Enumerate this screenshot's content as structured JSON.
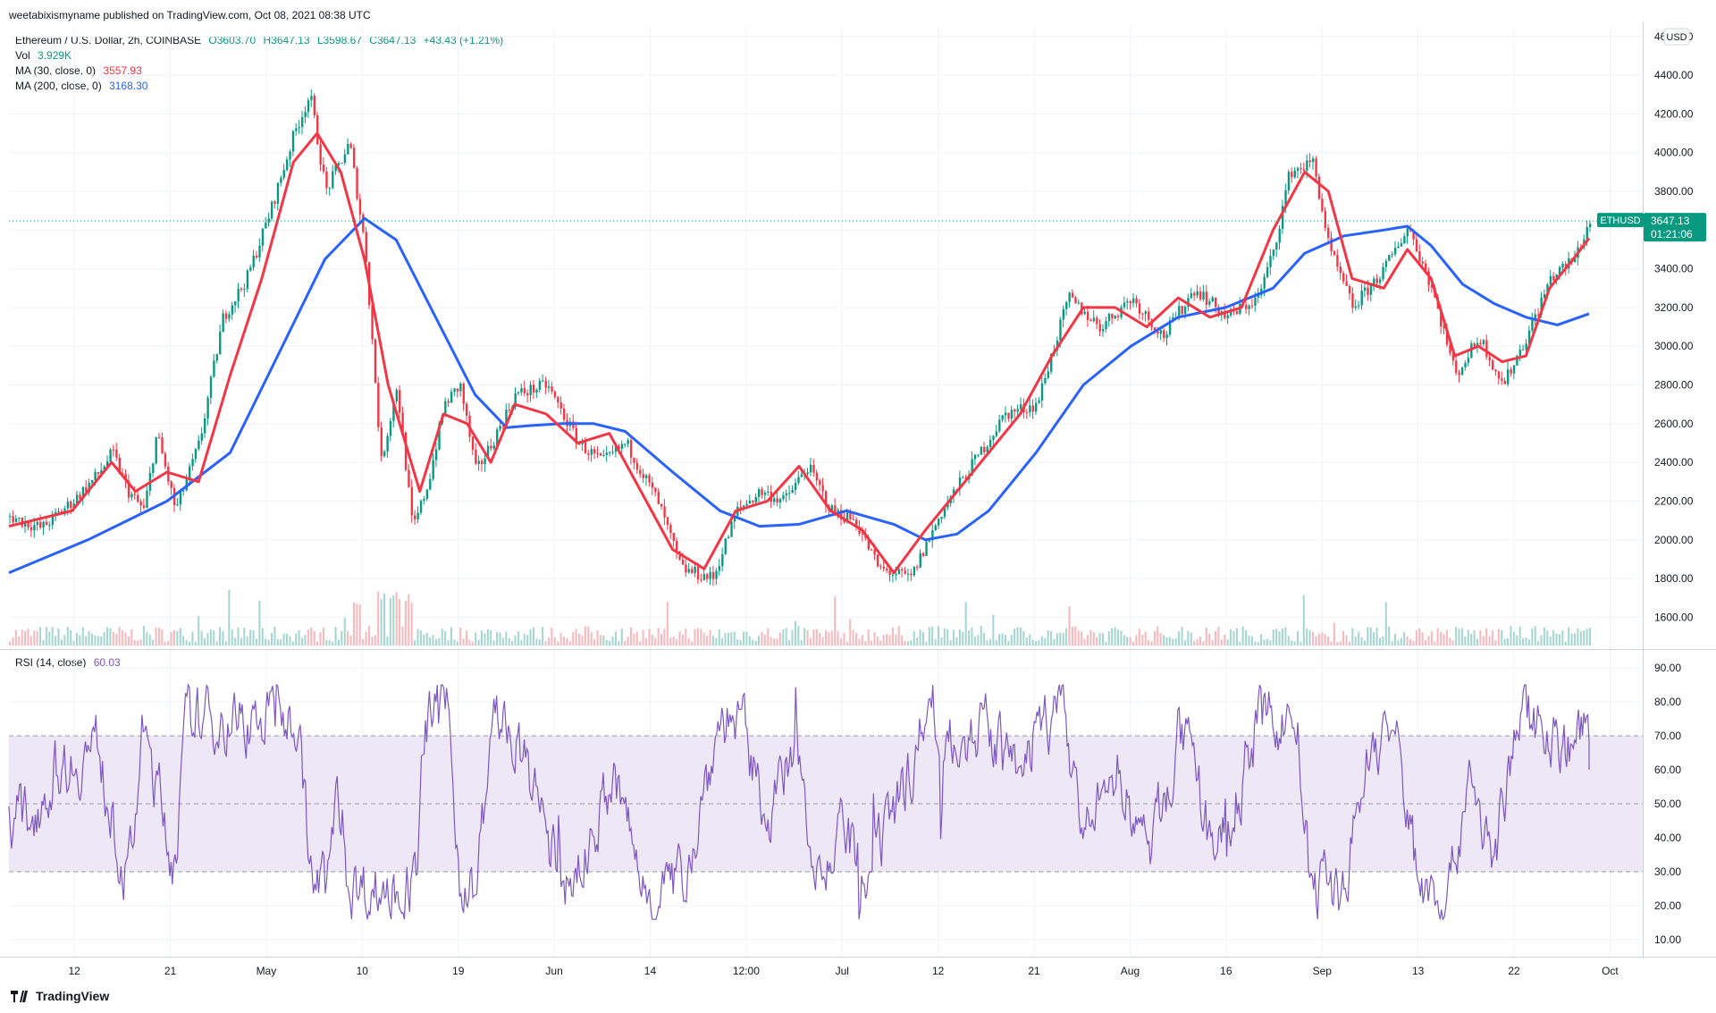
{
  "header": {
    "publisher_line": "weetabixismyname published on TradingView.com, Oct 08, 2021 08:38 UTC"
  },
  "legend": {
    "symbol": "Ethereum / U.S. Dollar, 2h, COINBASE",
    "open": "O3603.70",
    "high": "H3647.13",
    "low": "L3598.67",
    "close": "C3647.13",
    "change": "+43.43 (+1.21%)",
    "vol_label": "Vol",
    "vol_value": "3.929K",
    "ma30_label": "MA (30, close, 0)",
    "ma30_value": "3557.93",
    "ma200_label": "MA (200, close, 0)",
    "ma200_value": "3168.30",
    "rsi_label": "RSI (14, close)",
    "rsi_value": "60.03"
  },
  "price_scale": {
    "currency": "USD",
    "last_price_symbol": "ETHUSD",
    "last_price": "3647.13",
    "countdown": "01:21:06"
  },
  "footer": {
    "brand": "TradingView"
  },
  "colors": {
    "up": "#089981",
    "down": "#f23645",
    "ma30": "#f23645",
    "ma200": "#2962ff",
    "rsi": "#7e57c2",
    "rsi_band": "#ede7f6"
  },
  "chart_data": [
    {
      "type": "line",
      "title": "Ethereum / U.S. Dollar, 2h, COINBASE",
      "panel": "price",
      "ylim": [
        1440,
        4650
      ],
      "y_ticks": [
        "1600.00",
        "1800.00",
        "2000.00",
        "2200.00",
        "2400.00",
        "2600.00",
        "2800.00",
        "3000.00",
        "3200.00",
        "3400.00",
        "3600.00",
        "3800.00",
        "4000.00",
        "4200.00",
        "4400.00",
        "4600.00"
      ],
      "x_ticks": [
        "12",
        "21",
        "May",
        "10",
        "19",
        "Jun",
        "14",
        "12:00",
        "Jul",
        "12",
        "21",
        "Aug",
        "16",
        "Sep",
        "13",
        "22",
        "Oct"
      ],
      "price_path": [
        {
          "t": 0,
          "v": 2120
        },
        {
          "t": 0.02,
          "v": 2060
        },
        {
          "t": 0.04,
          "v": 2200
        },
        {
          "t": 0.055,
          "v": 2330
        },
        {
          "t": 0.065,
          "v": 2450
        },
        {
          "t": 0.075,
          "v": 2250
        },
        {
          "t": 0.085,
          "v": 2150
        },
        {
          "t": 0.093,
          "v": 2550
        },
        {
          "t": 0.105,
          "v": 2150
        },
        {
          "t": 0.12,
          "v": 2500
        },
        {
          "t": 0.135,
          "v": 3150
        },
        {
          "t": 0.15,
          "v": 3350
        },
        {
          "t": 0.165,
          "v": 3700
        },
        {
          "t": 0.18,
          "v": 4100
        },
        {
          "t": 0.19,
          "v": 4300
        },
        {
          "t": 0.2,
          "v": 3800
        },
        {
          "t": 0.215,
          "v": 4050
        },
        {
          "t": 0.225,
          "v": 3500
        },
        {
          "t": 0.235,
          "v": 2400
        },
        {
          "t": 0.245,
          "v": 2800
        },
        {
          "t": 0.255,
          "v": 2050
        },
        {
          "t": 0.265,
          "v": 2300
        },
        {
          "t": 0.275,
          "v": 2700
        },
        {
          "t": 0.285,
          "v": 2800
        },
        {
          "t": 0.295,
          "v": 2350
        },
        {
          "t": 0.305,
          "v": 2500
        },
        {
          "t": 0.32,
          "v": 2750
        },
        {
          "t": 0.34,
          "v": 2800
        },
        {
          "t": 0.36,
          "v": 2500
        },
        {
          "t": 0.375,
          "v": 2400
        },
        {
          "t": 0.39,
          "v": 2500
        },
        {
          "t": 0.41,
          "v": 2200
        },
        {
          "t": 0.425,
          "v": 1850
        },
        {
          "t": 0.445,
          "v": 1800
        },
        {
          "t": 0.46,
          "v": 2150
        },
        {
          "t": 0.475,
          "v": 2250
        },
        {
          "t": 0.49,
          "v": 2200
        },
        {
          "t": 0.505,
          "v": 2380
        },
        {
          "t": 0.52,
          "v": 2150
        },
        {
          "t": 0.535,
          "v": 2100
        },
        {
          "t": 0.55,
          "v": 1850
        },
        {
          "t": 0.57,
          "v": 1800
        },
        {
          "t": 0.59,
          "v": 2150
        },
        {
          "t": 0.61,
          "v": 2400
        },
        {
          "t": 0.63,
          "v": 2650
        },
        {
          "t": 0.65,
          "v": 2700
        },
        {
          "t": 0.67,
          "v": 3250
        },
        {
          "t": 0.69,
          "v": 3100
        },
        {
          "t": 0.71,
          "v": 3250
        },
        {
          "t": 0.73,
          "v": 3050
        },
        {
          "t": 0.75,
          "v": 3300
        },
        {
          "t": 0.77,
          "v": 3150
        },
        {
          "t": 0.79,
          "v": 3250
        },
        {
          "t": 0.8,
          "v": 3500
        },
        {
          "t": 0.81,
          "v": 3900
        },
        {
          "t": 0.825,
          "v": 3950
        },
        {
          "t": 0.835,
          "v": 3500
        },
        {
          "t": 0.85,
          "v": 3200
        },
        {
          "t": 0.87,
          "v": 3400
        },
        {
          "t": 0.885,
          "v": 3620
        },
        {
          "t": 0.9,
          "v": 3300
        },
        {
          "t": 0.915,
          "v": 2850
        },
        {
          "t": 0.93,
          "v": 3050
        },
        {
          "t": 0.945,
          "v": 2800
        },
        {
          "t": 0.96,
          "v": 3050
        },
        {
          "t": 0.975,
          "v": 3350
        },
        {
          "t": 0.99,
          "v": 3450
        },
        {
          "t": 1.0,
          "v": 3647
        }
      ],
      "ma30_path": [
        {
          "t": 0,
          "v": 2070
        },
        {
          "t": 0.04,
          "v": 2150
        },
        {
          "t": 0.065,
          "v": 2400
        },
        {
          "t": 0.08,
          "v": 2250
        },
        {
          "t": 0.1,
          "v": 2350
        },
        {
          "t": 0.12,
          "v": 2300
        },
        {
          "t": 0.14,
          "v": 2850
        },
        {
          "t": 0.16,
          "v": 3350
        },
        {
          "t": 0.18,
          "v": 3950
        },
        {
          "t": 0.195,
          "v": 4100
        },
        {
          "t": 0.21,
          "v": 3900
        },
        {
          "t": 0.225,
          "v": 3450
        },
        {
          "t": 0.24,
          "v": 2800
        },
        {
          "t": 0.26,
          "v": 2250
        },
        {
          "t": 0.275,
          "v": 2650
        },
        {
          "t": 0.29,
          "v": 2600
        },
        {
          "t": 0.305,
          "v": 2400
        },
        {
          "t": 0.32,
          "v": 2700
        },
        {
          "t": 0.34,
          "v": 2650
        },
        {
          "t": 0.36,
          "v": 2500
        },
        {
          "t": 0.38,
          "v": 2550
        },
        {
          "t": 0.4,
          "v": 2250
        },
        {
          "t": 0.42,
          "v": 1950
        },
        {
          "t": 0.44,
          "v": 1850
        },
        {
          "t": 0.46,
          "v": 2150
        },
        {
          "t": 0.48,
          "v": 2200
        },
        {
          "t": 0.5,
          "v": 2380
        },
        {
          "t": 0.52,
          "v": 2150
        },
        {
          "t": 0.54,
          "v": 2050
        },
        {
          "t": 0.56,
          "v": 1830
        },
        {
          "t": 0.58,
          "v": 2050
        },
        {
          "t": 0.6,
          "v": 2250
        },
        {
          "t": 0.62,
          "v": 2450
        },
        {
          "t": 0.64,
          "v": 2650
        },
        {
          "t": 0.66,
          "v": 2950
        },
        {
          "t": 0.68,
          "v": 3200
        },
        {
          "t": 0.7,
          "v": 3200
        },
        {
          "t": 0.72,
          "v": 3100
        },
        {
          "t": 0.74,
          "v": 3250
        },
        {
          "t": 0.76,
          "v": 3150
        },
        {
          "t": 0.78,
          "v": 3200
        },
        {
          "t": 0.8,
          "v": 3600
        },
        {
          "t": 0.82,
          "v": 3900
        },
        {
          "t": 0.835,
          "v": 3800
        },
        {
          "t": 0.85,
          "v": 3350
        },
        {
          "t": 0.87,
          "v": 3300
        },
        {
          "t": 0.885,
          "v": 3500
        },
        {
          "t": 0.9,
          "v": 3350
        },
        {
          "t": 0.915,
          "v": 2950
        },
        {
          "t": 0.93,
          "v": 3000
        },
        {
          "t": 0.945,
          "v": 2920
        },
        {
          "t": 0.96,
          "v": 2950
        },
        {
          "t": 0.975,
          "v": 3300
        },
        {
          "t": 0.99,
          "v": 3450
        },
        {
          "t": 1.0,
          "v": 3558
        }
      ],
      "ma200_path": [
        {
          "t": 0,
          "v": 1830
        },
        {
          "t": 0.05,
          "v": 2000
        },
        {
          "t": 0.1,
          "v": 2200
        },
        {
          "t": 0.14,
          "v": 2450
        },
        {
          "t": 0.17,
          "v": 2950
        },
        {
          "t": 0.2,
          "v": 3450
        },
        {
          "t": 0.225,
          "v": 3660
        },
        {
          "t": 0.245,
          "v": 3550
        },
        {
          "t": 0.27,
          "v": 3150
        },
        {
          "t": 0.295,
          "v": 2750
        },
        {
          "t": 0.315,
          "v": 2580
        },
        {
          "t": 0.33,
          "v": 2590
        },
        {
          "t": 0.35,
          "v": 2600
        },
        {
          "t": 0.37,
          "v": 2600
        },
        {
          "t": 0.39,
          "v": 2560
        },
        {
          "t": 0.42,
          "v": 2350
        },
        {
          "t": 0.45,
          "v": 2150
        },
        {
          "t": 0.475,
          "v": 2070
        },
        {
          "t": 0.5,
          "v": 2080
        },
        {
          "t": 0.53,
          "v": 2150
        },
        {
          "t": 0.56,
          "v": 2080
        },
        {
          "t": 0.58,
          "v": 2000
        },
        {
          "t": 0.6,
          "v": 2030
        },
        {
          "t": 0.62,
          "v": 2150
        },
        {
          "t": 0.65,
          "v": 2450
        },
        {
          "t": 0.68,
          "v": 2800
        },
        {
          "t": 0.71,
          "v": 3000
        },
        {
          "t": 0.74,
          "v": 3150
        },
        {
          "t": 0.77,
          "v": 3200
        },
        {
          "t": 0.8,
          "v": 3300
        },
        {
          "t": 0.82,
          "v": 3480
        },
        {
          "t": 0.845,
          "v": 3570
        },
        {
          "t": 0.87,
          "v": 3600
        },
        {
          "t": 0.885,
          "v": 3620
        },
        {
          "t": 0.9,
          "v": 3520
        },
        {
          "t": 0.92,
          "v": 3320
        },
        {
          "t": 0.94,
          "v": 3220
        },
        {
          "t": 0.96,
          "v": 3150
        },
        {
          "t": 0.98,
          "v": 3110
        },
        {
          "t": 1.0,
          "v": 3168
        }
      ]
    },
    {
      "type": "line",
      "title": "RSI (14, close)",
      "panel": "rsi",
      "ylim": [
        5,
        95
      ],
      "y_ticks": [
        "10.00",
        "20.00",
        "30.00",
        "40.00",
        "50.00",
        "60.00",
        "70.00",
        "80.00",
        "90.00"
      ],
      "band": [
        30,
        70
      ],
      "midline": 50,
      "last": 60.03
    }
  ]
}
